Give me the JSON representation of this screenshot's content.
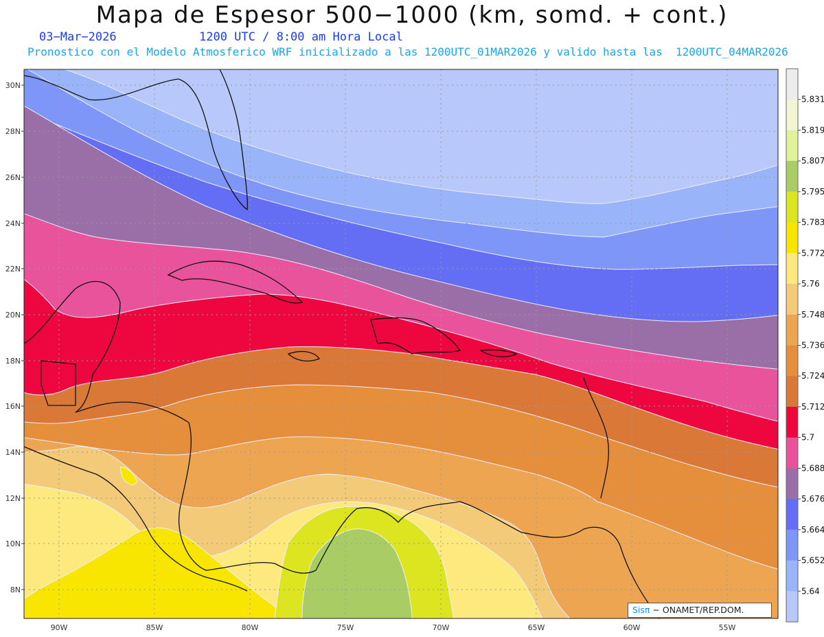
{
  "header": {
    "title": "Mapa de Espesor 500−1000 (km, somd. + cont.)",
    "date": "03−Mar−2026",
    "time": "1200 UTC / 8:00 am Hora Local",
    "subtitle": "Pronostico con el Modelo Atmosferico WRF inicializado a las 1200UTC_01MAR2026 y valido hasta las  1200UTC_04MAR2026"
  },
  "map": {
    "lat_labels": [
      "30N",
      "28N",
      "26N",
      "24N",
      "22N",
      "20N",
      "18N",
      "16N",
      "14N",
      "12N",
      "10N",
      "8N"
    ],
    "lon_labels": [
      "90W",
      "85W",
      "80W",
      "75W",
      "70W",
      "65W",
      "60W",
      "55W"
    ]
  },
  "colorbar": {
    "labels": [
      "5.831",
      "5.819",
      "5.807",
      "5.795",
      "5.783",
      "5.772",
      "5.76",
      "5.748",
      "5.736",
      "5.724",
      "5.712",
      "5.7",
      "5.688",
      "5.676",
      "5.664",
      "5.652",
      "5.64"
    ],
    "colors": [
      "#ececec",
      "#f3f6d2",
      "#e2f29a",
      "#a9cd64",
      "#dce520",
      "#f8e600",
      "#fde97e",
      "#f2ca78",
      "#eda552",
      "#e58e3c",
      "#da7838",
      "#ee063e",
      "#e9539c",
      "#9a6fa8",
      "#646ef5",
      "#7d96f7",
      "#9ab4f9",
      "#b8c8fb"
    ]
  },
  "credit": {
    "brand": "Sisπ",
    "text": " − ONAMET/REP.DOM."
  }
}
